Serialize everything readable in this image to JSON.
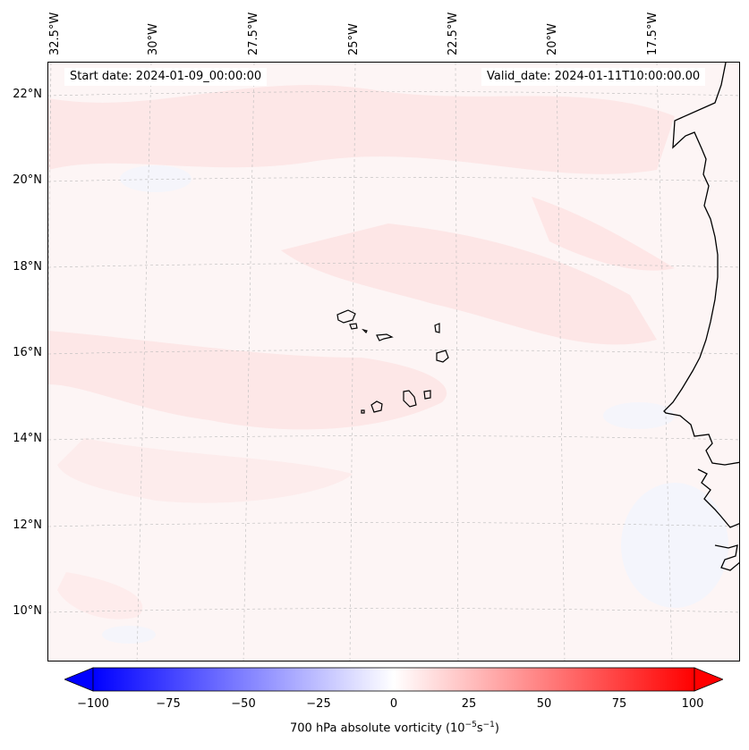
{
  "map": {
    "start_label": "Start date: 2024-01-09_00:00:00",
    "valid_label": "Valid_date: 2024-01-11T10:00:00.00",
    "latitude_labels": [
      "22°N",
      "20°N",
      "18°N",
      "16°N",
      "14°N",
      "12°N",
      "10°N"
    ],
    "longitude_labels": [
      "32.5°W",
      "30°W",
      "27.5°W",
      "25°W",
      "22.5°W",
      "20°W",
      "17.5°W"
    ],
    "field_colors": {
      "background": "#fdf5f5",
      "positive_band": "#fde6e6",
      "negative_patch": "#f3f5fd"
    }
  },
  "colorbar": {
    "ticks": [
      "−100",
      "−75",
      "−50",
      "−25",
      "0",
      "25",
      "50",
      "75",
      "100"
    ],
    "title_prefix": "700 hPa absolute vorticity (10",
    "title_exp1": "−5",
    "title_mid": "s",
    "title_exp2": "−1",
    "title_suffix": ")",
    "colors": {
      "min": "#0000ff",
      "center": "#ffffff",
      "max": "#ff0000"
    }
  }
}
